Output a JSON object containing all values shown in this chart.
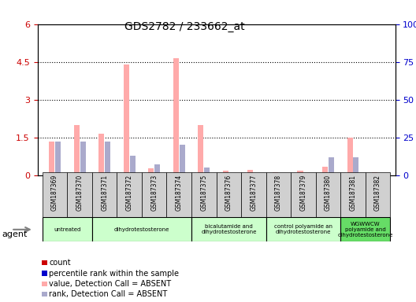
{
  "title": "GDS2782 / 233662_at",
  "samples": [
    "GSM187369",
    "GSM187370",
    "GSM187371",
    "GSM187372",
    "GSM187373",
    "GSM187374",
    "GSM187375",
    "GSM187376",
    "GSM187377",
    "GSM187378",
    "GSM187379",
    "GSM187380",
    "GSM187381",
    "GSM187382"
  ],
  "value_absent": [
    1.35,
    2.0,
    1.65,
    4.4,
    0.28,
    4.65,
    2.0,
    0.18,
    0.2,
    0.12,
    0.18,
    0.35,
    1.5,
    0.12
  ],
  "rank_absent": [
    0.22,
    0.22,
    0.22,
    0.13,
    0.07,
    0.2,
    0.05,
    0.0,
    0.0,
    0.0,
    0.0,
    0.12,
    0.12,
    0.0
  ],
  "count_present": [
    0.0,
    0.0,
    0.0,
    0.0,
    0.0,
    0.0,
    0.0,
    0.0,
    0.0,
    0.0,
    0.0,
    0.0,
    0.0,
    0.0
  ],
  "rank_present": [
    0.0,
    0.0,
    0.0,
    0.0,
    0.0,
    0.0,
    0.0,
    0.0,
    0.0,
    0.0,
    0.0,
    0.0,
    0.0,
    0.0
  ],
  "ylim_left": [
    0,
    6
  ],
  "ylim_right": [
    0,
    100
  ],
  "yticks_left": [
    0,
    1.5,
    3.0,
    4.5,
    6.0
  ],
  "yticks_right": [
    0,
    25,
    50,
    75,
    100
  ],
  "ytick_labels_left": [
    "0",
    "1.5",
    "3",
    "4.5",
    "6"
  ],
  "ytick_labels_right": [
    "0",
    "25",
    "50",
    "75",
    "100%"
  ],
  "color_count": "#cc0000",
  "color_rank": "#0000cc",
  "color_value_absent": "#ffaaaa",
  "color_rank_absent": "#aaaacc",
  "groups": [
    {
      "label": "untreated",
      "start": 0,
      "end": 2,
      "color": "#ccffcc"
    },
    {
      "label": "dihydrotestosterone",
      "start": 2,
      "end": 6,
      "color": "#ccffcc"
    },
    {
      "label": "bicalutamide and\ndihydrotestosterone",
      "start": 6,
      "end": 9,
      "color": "#ccffcc"
    },
    {
      "label": "control polyamide an\ndihydrotestosterone",
      "start": 9,
      "end": 12,
      "color": "#ccffcc"
    },
    {
      "label": "WGWWCW\npolyamide and\ndihydrotestosterone",
      "start": 12,
      "end": 14,
      "color": "#66dd66"
    }
  ],
  "legend_items": [
    {
      "label": "count",
      "color": "#cc0000",
      "marker": "s"
    },
    {
      "label": "percentile rank within the sample",
      "color": "#0000cc",
      "marker": "s"
    },
    {
      "label": "value, Detection Call = ABSENT",
      "color": "#ffaaaa",
      "marker": "s"
    },
    {
      "label": "rank, Detection Call = ABSENT",
      "color": "#aaaacc",
      "marker": "s"
    }
  ],
  "bar_width": 0.25,
  "background_color": "#ffffff",
  "plot_bg": "#ffffff",
  "grid_color": "#000000",
  "tick_color_left": "#cc0000",
  "tick_color_right": "#0000cc"
}
